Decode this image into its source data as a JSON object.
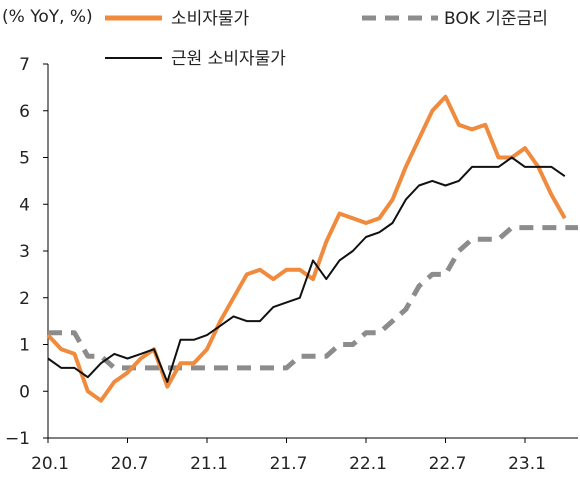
{
  "chart_data": {
    "type": "line",
    "unit_label": "(% YoY, %)",
    "ylim": [
      -1,
      7
    ],
    "yticks": [
      -1,
      0,
      1,
      2,
      3,
      4,
      5,
      6,
      7
    ],
    "x_tick_labels": [
      "20.1",
      "20.7",
      "21.1",
      "21.7",
      "22.1",
      "22.7",
      "23.1"
    ],
    "x_tick_index": [
      0,
      6,
      12,
      18,
      24,
      30,
      36
    ],
    "n_points": 41,
    "legend": {
      "placement": "top"
    },
    "series": [
      {
        "name": "소비자물가",
        "color": "#F08A3C",
        "style": "solid-thick",
        "values": [
          1.2,
          0.9,
          0.8,
          0.0,
          -0.2,
          0.2,
          0.4,
          0.7,
          0.9,
          0.1,
          0.6,
          0.6,
          0.9,
          1.5,
          2.0,
          2.5,
          2.6,
          2.4,
          2.6,
          2.6,
          2.4,
          3.2,
          3.8,
          3.7,
          3.6,
          3.7,
          4.1,
          4.8,
          5.4,
          6.0,
          6.3,
          5.7,
          5.6,
          5.7,
          5.0,
          5.0,
          5.2,
          4.8,
          4.2,
          3.7
        ]
      },
      {
        "name": "BOK 기준금리",
        "color": "#8C8C8C",
        "style": "dashed-thick",
        "values": [
          1.25,
          1.25,
          1.25,
          0.75,
          0.75,
          0.5,
          0.5,
          0.5,
          0.5,
          0.5,
          0.5,
          0.5,
          0.5,
          0.5,
          0.5,
          0.5,
          0.5,
          0.5,
          0.5,
          0.75,
          0.75,
          0.75,
          1.0,
          1.0,
          1.25,
          1.25,
          1.5,
          1.75,
          2.25,
          2.5,
          2.5,
          3.0,
          3.25,
          3.25,
          3.25,
          3.5,
          3.5,
          3.5,
          3.5,
          3.5,
          3.5
        ]
      },
      {
        "name": "근원 소비자물가",
        "color": "#111111",
        "style": "solid-thin",
        "values": [
          0.7,
          0.5,
          0.5,
          0.3,
          0.6,
          0.8,
          0.7,
          0.8,
          0.9,
          0.2,
          1.1,
          1.1,
          1.2,
          1.4,
          1.6,
          1.5,
          1.5,
          1.8,
          1.9,
          2.0,
          2.8,
          2.4,
          2.8,
          3.0,
          3.3,
          3.4,
          3.6,
          4.1,
          4.4,
          4.5,
          4.4,
          4.5,
          4.8,
          4.8,
          4.8,
          5.0,
          4.8,
          4.8,
          4.8,
          4.6
        ]
      }
    ]
  }
}
